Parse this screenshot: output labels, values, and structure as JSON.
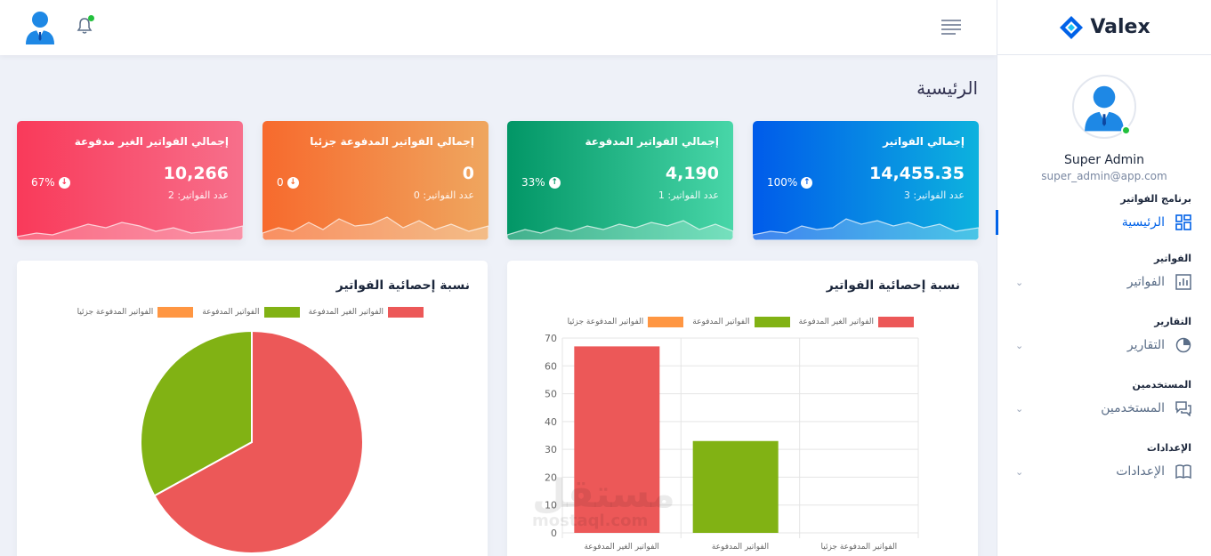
{
  "brand": {
    "name": "Valex"
  },
  "profile": {
    "name": "Super Admin",
    "email": "super_admin@app.com"
  },
  "sidebar": {
    "sections": [
      {
        "category": "برنامج الفواتير",
        "item": "الرئيسية",
        "icon": "dashboard-icon",
        "active": true
      },
      {
        "category": "الفواتير",
        "item": "الفواتير",
        "icon": "bar-chart-icon"
      },
      {
        "category": "التقارير",
        "item": "التقارير",
        "icon": "pie-chart-icon"
      },
      {
        "category": "المستخدمين",
        "item": "المستخدمين",
        "icon": "chat-icon"
      },
      {
        "category": "الإعدادات",
        "item": "الإعدادات",
        "icon": "book-icon"
      }
    ]
  },
  "page": {
    "title": "الرئيسية"
  },
  "cards": [
    {
      "title": "إجمالي الفواتير",
      "value": "14,455.35",
      "count": "عدد الفواتير: 3",
      "percent": "100%",
      "trend": "up"
    },
    {
      "title": "إجمالي الفواتير المدفوعة",
      "value": "4,190",
      "count": "عدد الفواتير: 1",
      "percent": "33%",
      "trend": "up"
    },
    {
      "title": "إجمالي الفواتير المدفوعة جزئيا",
      "value": "0",
      "count": "عدد الفواتير: 0",
      "percent": "0",
      "trend": "down"
    },
    {
      "title": "إجمالي الفواتير الغير مدفوعة",
      "value": "10,266",
      "count": "عدد الفواتير: 2",
      "percent": "67%",
      "trend": "down"
    }
  ],
  "watermark": {
    "text": "مستقل",
    "sub": "mostaql.com"
  },
  "chart_data": [
    {
      "type": "bar",
      "title": "نسبة إحصائية الفواتير",
      "categories": [
        "الفواتير الغير المدفوعة",
        "الفواتير المدفوعة",
        "الفواتير المدفوعة جزئيا"
      ],
      "values": [
        67,
        33,
        0
      ],
      "colors": [
        "#ec5858",
        "#81b214",
        "#ff9642"
      ],
      "ylim": [
        0,
        70
      ],
      "yticks": [
        0,
        10,
        20,
        30,
        40,
        50,
        60,
        70
      ],
      "legend": [
        "الفواتير الغير المدفوعة",
        "الفواتير المدفوعة",
        "الفواتير المدفوعة جزئيا"
      ],
      "legend_position": "top",
      "grid": true
    },
    {
      "type": "pie",
      "title": "نسبة إحصائية الفواتير",
      "categories": [
        "الفواتير الغير المدفوعة",
        "الفواتير المدفوعة",
        "الفواتير المدفوعة جزئيا"
      ],
      "values": [
        67,
        33,
        0
      ],
      "colors": [
        "#ec5858",
        "#81b214",
        "#ff9642"
      ],
      "legend": [
        "الفواتير الغير المدفوعة",
        "الفواتير المدفوعة",
        "الفواتير المدفوعة جزئيا"
      ],
      "legend_position": "top"
    }
  ]
}
